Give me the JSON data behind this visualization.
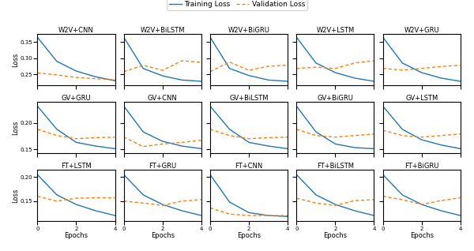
{
  "subplots": [
    {
      "title": "W2V+CNN",
      "train": [
        0.365,
        0.29,
        0.26,
        0.242,
        0.23
      ],
      "val": [
        0.254,
        0.248,
        0.24,
        0.236,
        0.233
      ],
      "ylim": [
        0.215,
        0.375
      ],
      "yticks": [
        0.25,
        0.3,
        0.35
      ]
    },
    {
      "title": "W2V+BiLSTM",
      "train": [
        0.365,
        0.268,
        0.245,
        0.232,
        0.228
      ],
      "val": [
        0.258,
        0.278,
        0.262,
        0.292,
        0.287
      ],
      "ylim": [
        0.215,
        0.375
      ],
      "yticks": [
        0.25,
        0.3,
        0.35
      ]
    },
    {
      "title": "W2V+BiGRU",
      "train": [
        0.365,
        0.268,
        0.246,
        0.232,
        0.228
      ],
      "val": [
        0.258,
        0.288,
        0.262,
        0.275,
        0.278
      ],
      "ylim": [
        0.215,
        0.375
      ],
      "yticks": [
        0.25,
        0.3,
        0.35
      ]
    },
    {
      "title": "W2V+LSTM",
      "train": [
        0.365,
        0.285,
        0.255,
        0.238,
        0.228
      ],
      "val": [
        0.268,
        0.272,
        0.268,
        0.285,
        0.292
      ],
      "ylim": [
        0.215,
        0.375
      ],
      "yticks": [
        0.25,
        0.3,
        0.35
      ]
    },
    {
      "title": "W2V+GRU",
      "train": [
        0.365,
        0.285,
        0.255,
        0.238,
        0.228
      ],
      "val": [
        0.268,
        0.263,
        0.268,
        0.274,
        0.278
      ],
      "ylim": [
        0.215,
        0.375
      ],
      "yticks": [
        0.25,
        0.3,
        0.35
      ]
    },
    {
      "title": "GV+GRU",
      "train": [
        0.232,
        0.188,
        0.163,
        0.156,
        0.151
      ],
      "val": [
        0.188,
        0.176,
        0.17,
        0.172,
        0.173
      ],
      "ylim": [
        0.142,
        0.24
      ],
      "yticks": [
        0.15,
        0.2
      ]
    },
    {
      "title": "GV+CNN",
      "train": [
        0.232,
        0.183,
        0.165,
        0.156,
        0.151
      ],
      "val": [
        0.173,
        0.155,
        0.16,
        0.163,
        0.167
      ],
      "ylim": [
        0.142,
        0.24
      ],
      "yticks": [
        0.15,
        0.2
      ]
    },
    {
      "title": "GV+BiLSTM",
      "train": [
        0.232,
        0.188,
        0.163,
        0.156,
        0.151
      ],
      "val": [
        0.188,
        0.176,
        0.17,
        0.172,
        0.173
      ],
      "ylim": [
        0.142,
        0.24
      ],
      "yticks": [
        0.15,
        0.2
      ]
    },
    {
      "title": "GV+BiGRU",
      "train": [
        0.232,
        0.183,
        0.16,
        0.153,
        0.151
      ],
      "val": [
        0.188,
        0.176,
        0.173,
        0.176,
        0.179
      ],
      "ylim": [
        0.142,
        0.24
      ],
      "yticks": [
        0.15,
        0.2
      ]
    },
    {
      "title": "GV+LSTM",
      "train": [
        0.232,
        0.188,
        0.168,
        0.158,
        0.151
      ],
      "val": [
        0.186,
        0.176,
        0.173,
        0.176,
        0.179
      ],
      "ylim": [
        0.142,
        0.24
      ],
      "yticks": [
        0.15,
        0.2
      ]
    },
    {
      "title": "FT+LSTM",
      "train": [
        0.205,
        0.163,
        0.143,
        0.13,
        0.12
      ],
      "val": [
        0.16,
        0.15,
        0.156,
        0.157,
        0.157
      ],
      "ylim": [
        0.108,
        0.215
      ],
      "yticks": [
        0.15,
        0.2
      ]
    },
    {
      "title": "FT+GRU",
      "train": [
        0.205,
        0.163,
        0.143,
        0.13,
        0.12
      ],
      "val": [
        0.15,
        0.146,
        0.141,
        0.15,
        0.153
      ],
      "ylim": [
        0.108,
        0.215
      ],
      "yticks": [
        0.15,
        0.2
      ]
    },
    {
      "title": "FT+CNN",
      "train": [
        0.205,
        0.148,
        0.126,
        0.12,
        0.118
      ],
      "val": [
        0.136,
        0.123,
        0.12,
        0.12,
        0.12
      ],
      "ylim": [
        0.108,
        0.215
      ],
      "yticks": [
        0.15,
        0.2
      ]
    },
    {
      "title": "FT+BiLSTM",
      "train": [
        0.205,
        0.163,
        0.143,
        0.13,
        0.12
      ],
      "val": [
        0.156,
        0.146,
        0.141,
        0.151,
        0.153
      ],
      "ylim": [
        0.108,
        0.215
      ],
      "yticks": [
        0.15,
        0.2
      ]
    },
    {
      "title": "FT+BiGRU",
      "train": [
        0.205,
        0.163,
        0.143,
        0.13,
        0.12
      ],
      "val": [
        0.16,
        0.153,
        0.143,
        0.151,
        0.157
      ],
      "ylim": [
        0.108,
        0.215
      ],
      "yticks": [
        0.15,
        0.2
      ]
    }
  ],
  "train_color": "#1f77b4",
  "val_color": "#ff7f0e",
  "xlabel": "Epochs",
  "ylabel": "Loss",
  "legend_train": "Training Loss",
  "legend_val": "Validation Loss",
  "rows": 3,
  "cols": 5,
  "epochs": [
    0,
    1,
    2,
    3,
    4
  ],
  "figsize": [
    6.0,
    3.18
  ],
  "dpi": 100
}
